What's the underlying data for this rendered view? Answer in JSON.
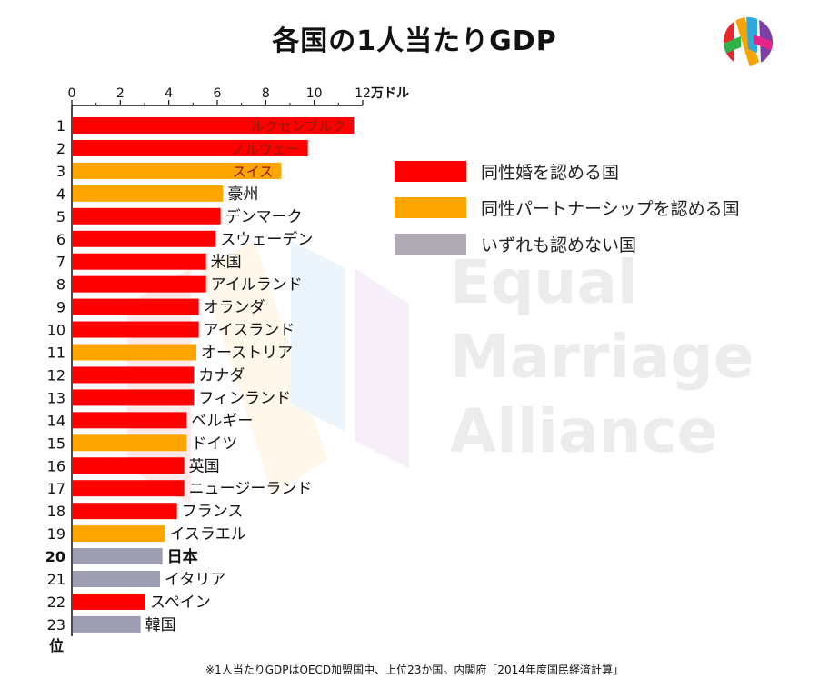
{
  "header": {
    "title": "各国の1人当たりGDP"
  },
  "footnote": "※1人当たりGDPはOECD加盟国中、上位23か国。内閣府「2014年度国民経済計算」",
  "watermark": {
    "lines": [
      "Equal",
      "Marriage",
      "Alliance"
    ]
  },
  "legend": {
    "items": [
      {
        "label": "同性婚を認める国",
        "color": "#ff0000"
      },
      {
        "label": "同性パートナーシップを認める国",
        "color": "#ffa500"
      },
      {
        "label": "いずれも認めない国",
        "color": "#b0aab5"
      }
    ]
  },
  "colors": {
    "red": "#ff0000",
    "orange": "#ffa500",
    "gray": "#9e9eb3",
    "text": "#111111"
  },
  "chart_data": {
    "type": "bar",
    "orientation": "horizontal",
    "x_axis_label": "万ドル",
    "rank_axis_label": "位",
    "xlim": [
      0,
      12
    ],
    "x_ticks": [
      "0",
      "2",
      "4",
      "6",
      "8",
      "10",
      "12"
    ],
    "bars": [
      {
        "rank": "1",
        "country": "ルクセンブルク",
        "value": 11.6,
        "category": "red",
        "label_inside": true
      },
      {
        "rank": "2",
        "country": "ノルウェー",
        "value": 9.7,
        "category": "red",
        "label_inside": true
      },
      {
        "rank": "3",
        "country": "スイス",
        "value": 8.6,
        "category": "orange",
        "label_inside": true
      },
      {
        "rank": "4",
        "country": "豪州",
        "value": 6.2,
        "category": "orange"
      },
      {
        "rank": "5",
        "country": "デンマーク",
        "value": 6.1,
        "category": "red"
      },
      {
        "rank": "6",
        "country": "スウェーデン",
        "value": 5.9,
        "category": "red"
      },
      {
        "rank": "7",
        "country": "米国",
        "value": 5.5,
        "category": "red"
      },
      {
        "rank": "8",
        "country": "アイルランド",
        "value": 5.5,
        "category": "red"
      },
      {
        "rank": "9",
        "country": "オランダ",
        "value": 5.2,
        "category": "red"
      },
      {
        "rank": "10",
        "country": "アイスランド",
        "value": 5.2,
        "category": "red"
      },
      {
        "rank": "11",
        "country": "オーストリア",
        "value": 5.1,
        "category": "orange"
      },
      {
        "rank": "12",
        "country": "カナダ",
        "value": 5.0,
        "category": "red"
      },
      {
        "rank": "13",
        "country": "フィンランド",
        "value": 5.0,
        "category": "red"
      },
      {
        "rank": "14",
        "country": "ベルギー",
        "value": 4.7,
        "category": "red"
      },
      {
        "rank": "15",
        "country": "ドイツ",
        "value": 4.7,
        "category": "orange"
      },
      {
        "rank": "16",
        "country": "英国",
        "value": 4.6,
        "category": "red"
      },
      {
        "rank": "17",
        "country": "ニュージーランド",
        "value": 4.6,
        "category": "red"
      },
      {
        "rank": "18",
        "country": "フランス",
        "value": 4.3,
        "category": "red"
      },
      {
        "rank": "19",
        "country": "イスラエル",
        "value": 3.8,
        "category": "orange"
      },
      {
        "rank": "20",
        "country": "日本",
        "value": 3.7,
        "category": "gray",
        "highlight": true
      },
      {
        "rank": "21",
        "country": "イタリア",
        "value": 3.6,
        "category": "gray"
      },
      {
        "rank": "22",
        "country": "スペイン",
        "value": 3.0,
        "category": "red"
      },
      {
        "rank": "23",
        "country": "韓国",
        "value": 2.8,
        "category": "gray"
      }
    ]
  }
}
